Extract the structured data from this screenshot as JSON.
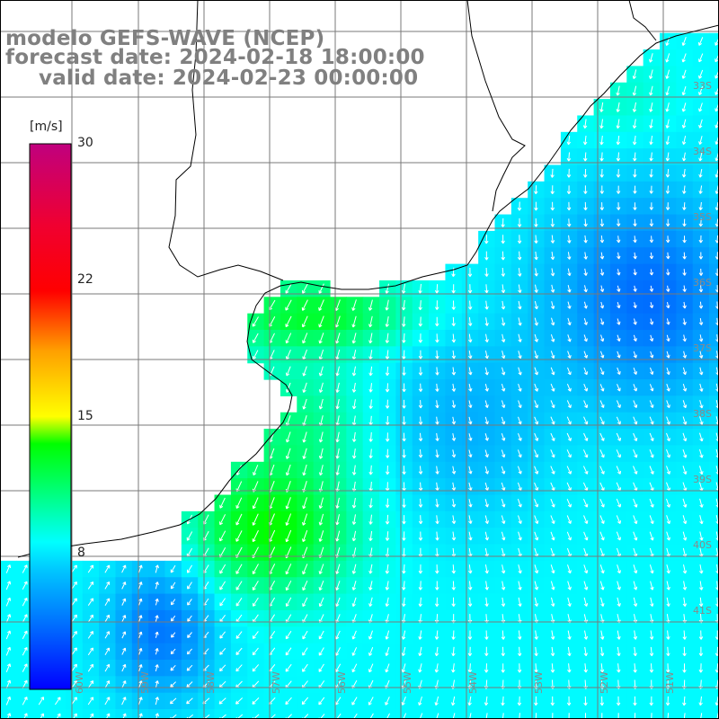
{
  "title": {
    "line1": "modelo GEFS-WAVE (NCEP)",
    "line2": "forecast date: 2024-02-18 18:00:00",
    "line3": "valid date: 2024-02-23 00:00:00"
  },
  "colorbar": {
    "unit": "[m/s]",
    "ticks": [
      {
        "label": "30",
        "value": 30
      },
      {
        "label": "22",
        "value": 22
      },
      {
        "label": "15",
        "value": 15
      },
      {
        "label": "8",
        "value": 8
      }
    ],
    "range": [
      0,
      30
    ],
    "colors": [
      "#0000ff",
      "#0077ff",
      "#00c0ff",
      "#00ffff",
      "#00ff60",
      "#00ff00",
      "#9aff00",
      "#ffff00",
      "#ffa000",
      "#ff3000",
      "#ff0000",
      "#e0003a",
      "#c0007a"
    ]
  },
  "lat_labels": [
    "33S",
    "34S",
    "35S",
    "36S",
    "37S",
    "38S",
    "39S",
    "40S",
    "41S"
  ],
  "lon_labels": [
    "60W",
    "59W",
    "58W",
    "57W",
    "56W",
    "55W",
    "54W",
    "53W",
    "52W",
    "51W"
  ]
}
